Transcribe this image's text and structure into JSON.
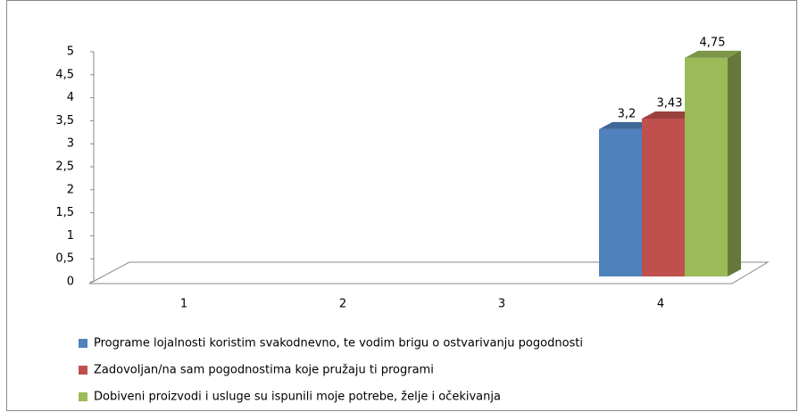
{
  "chart_data": {
    "type": "bar3d",
    "categories": [
      "1",
      "2",
      "3",
      "4"
    ],
    "series": [
      {
        "name": "Programe lojalnosti koristim svakodnevno, te vodim brigu o ostvarivanju pogodnosti",
        "color": "#4f81bd",
        "values": [
          null,
          null,
          null,
          3.2
        ],
        "value_labels": [
          null,
          null,
          null,
          "3,2"
        ]
      },
      {
        "name": "Zadovoljan/na sam pogodnostima koje pružaju ti programi",
        "color": "#c0504d",
        "values": [
          null,
          null,
          null,
          3.43
        ],
        "value_labels": [
          null,
          null,
          null,
          "3,43"
        ]
      },
      {
        "name": "Dobiveni proizvodi i usluge su ispunili moje potrebe, želje i očekivanja",
        "color": "#9bbb59",
        "values": [
          null,
          null,
          null,
          4.75
        ],
        "value_labels": [
          null,
          null,
          null,
          "4,75"
        ]
      }
    ],
    "ylim": [
      0,
      5
    ],
    "yticks": [
      0,
      {
        "value": 0.5,
        "label": "0,5"
      },
      1,
      {
        "value": 1.5,
        "label": "1,5"
      },
      2,
      {
        "value": 2.5,
        "label": "2,5"
      },
      3,
      {
        "value": 3.5,
        "label": "3,5"
      },
      4,
      {
        "value": 4.5,
        "label": "4,5"
      },
      5
    ],
    "legend": "bottom"
  }
}
